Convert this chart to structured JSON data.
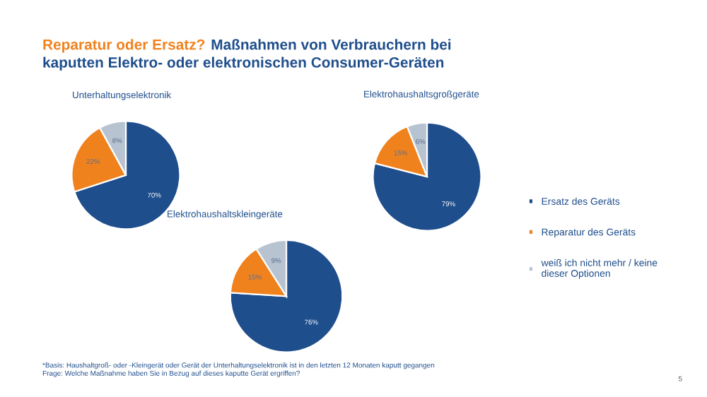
{
  "chart_data": [
    {
      "type": "pie",
      "title": "Reparatur oder Ersatz?",
      "subtitle": "Maßnahmen von Verbrauchern bei\nkaputten Elektro- oder elektronischen Consumer-Geräten",
      "xlabel": "Unterhaltungselektronik",
      "categories": [
        "Ersatz des Geräts",
        "Reparatur des Geräts",
        "weiß ich nicht mehr / keine\ndieser Optionen"
      ],
      "values": [
        70,
        22,
        8
      ],
      "value_labels": [
        "70%",
        "22%",
        "8%"
      ],
      "colors": [
        "#1f4e8c",
        "#f0821e",
        "#b8c3d1"
      ],
      "legend": "right"
    },
    {
      "type": "pie",
      "xlabel": "Elektrohaushaltsgroßgeräte",
      "categories": [
        null,
        null,
        null
      ],
      "values": [
        79,
        15,
        6
      ],
      "value_labels": [
        "79%",
        "15%",
        "6%"
      ],
      "colors": [
        "#1f4e8c",
        "#f0821e",
        "#b8c3d1"
      ]
    },
    {
      "type": "pie",
      "xlabel": "Elektrohaushaltskleingeräte",
      "categories": [
        null,
        null,
        null
      ],
      "values": [
        76,
        15,
        9
      ],
      "value_labels": [
        "76%",
        "15%",
        "9%"
      ],
      "colors": [
        "#1f4e8c",
        "#f0821e",
        "#b8c3d1"
      ],
      "annotations": [
        "*Basis: Haushaltgroß- oder -Kleingerät oder Gerät der Unterhaltungselektronik ist in den letzten 12 Monaten kaputt gegangen\nFrage: Welche Maßnahme haben Sie in Bezug auf dieses kaputte Gerät ergriffen?",
        "5"
      ]
    }
  ]
}
